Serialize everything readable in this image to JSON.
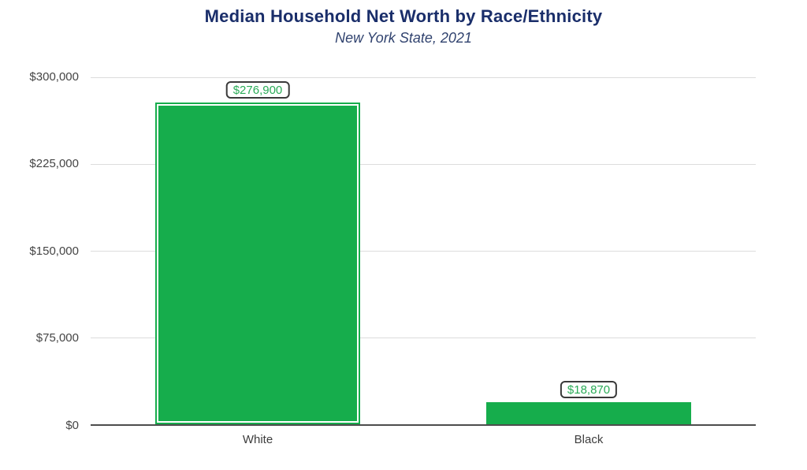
{
  "colors": {
    "bar_green": "#16ad4c",
    "value_label_green": "#2aab57",
    "title_navy": "#1a2e6a",
    "subtitle_blue": "#31436f",
    "axis_text_gray": "#454545",
    "gridline_gray": "#dcdcdc",
    "axis_line_gray": "#4d4d4d"
  },
  "chart_data": {
    "type": "bar",
    "title": "Median Household Net Worth by Race/Ethnicity",
    "subtitle": "New York State, 2021",
    "categories": [
      "White",
      "Black"
    ],
    "values": [
      276900,
      18870
    ],
    "value_labels": [
      "$276,900",
      "$18,870"
    ],
    "xlabel": "",
    "ylabel": "",
    "ylim": [
      0,
      300000
    ],
    "ytick_values": [
      300000,
      225000,
      150000,
      75000,
      0
    ],
    "ytick_labels": [
      "$300,000",
      "$225,000",
      "$150,000",
      "$75,000",
      "$0"
    ],
    "grid": "horizontal",
    "legend": "none",
    "highlighted_category": "White"
  }
}
